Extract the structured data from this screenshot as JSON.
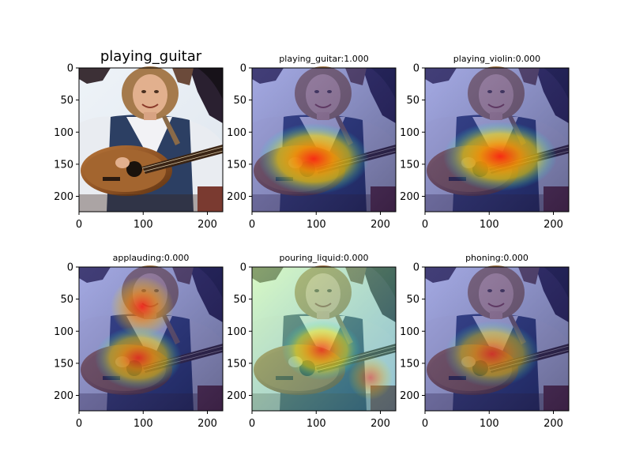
{
  "figure": {
    "panels": [
      {
        "title": "playing_guitar",
        "style": "original"
      },
      {
        "title": "playing_guitar:1.000",
        "style": "heat"
      },
      {
        "title": "playing_violin:0.000",
        "style": "heat"
      },
      {
        "title": "applauding:0.000",
        "style": "heat"
      },
      {
        "title": "pouring_liquid:0.000",
        "style": "heat"
      },
      {
        "title": "phoning:0.000",
        "style": "heat"
      }
    ],
    "axis": {
      "x_ticks": [
        "0",
        "100",
        "200"
      ],
      "y_ticks": [
        "0",
        "50",
        "100",
        "150",
        "200"
      ],
      "x_tick_values": [
        0,
        100,
        200
      ],
      "y_tick_values": [
        0,
        50,
        100,
        150,
        200
      ],
      "extent": [
        0,
        224
      ]
    },
    "colors": {
      "sky": "#e8eef6",
      "denim": "#2c3f63",
      "guitar_wood": "#a0612d",
      "guitar_dark": "#2a1a10",
      "skin": "#e2b08e",
      "hair": "#a57a4c",
      "shirt": "#f1f1f4",
      "heat_red": "#ff3b1f",
      "heat_yellow": "#ffe600",
      "heat_cyan": "#00e5ff",
      "overlay_blue": "#3a3aa0",
      "overlay_dark": "#141450"
    }
  }
}
